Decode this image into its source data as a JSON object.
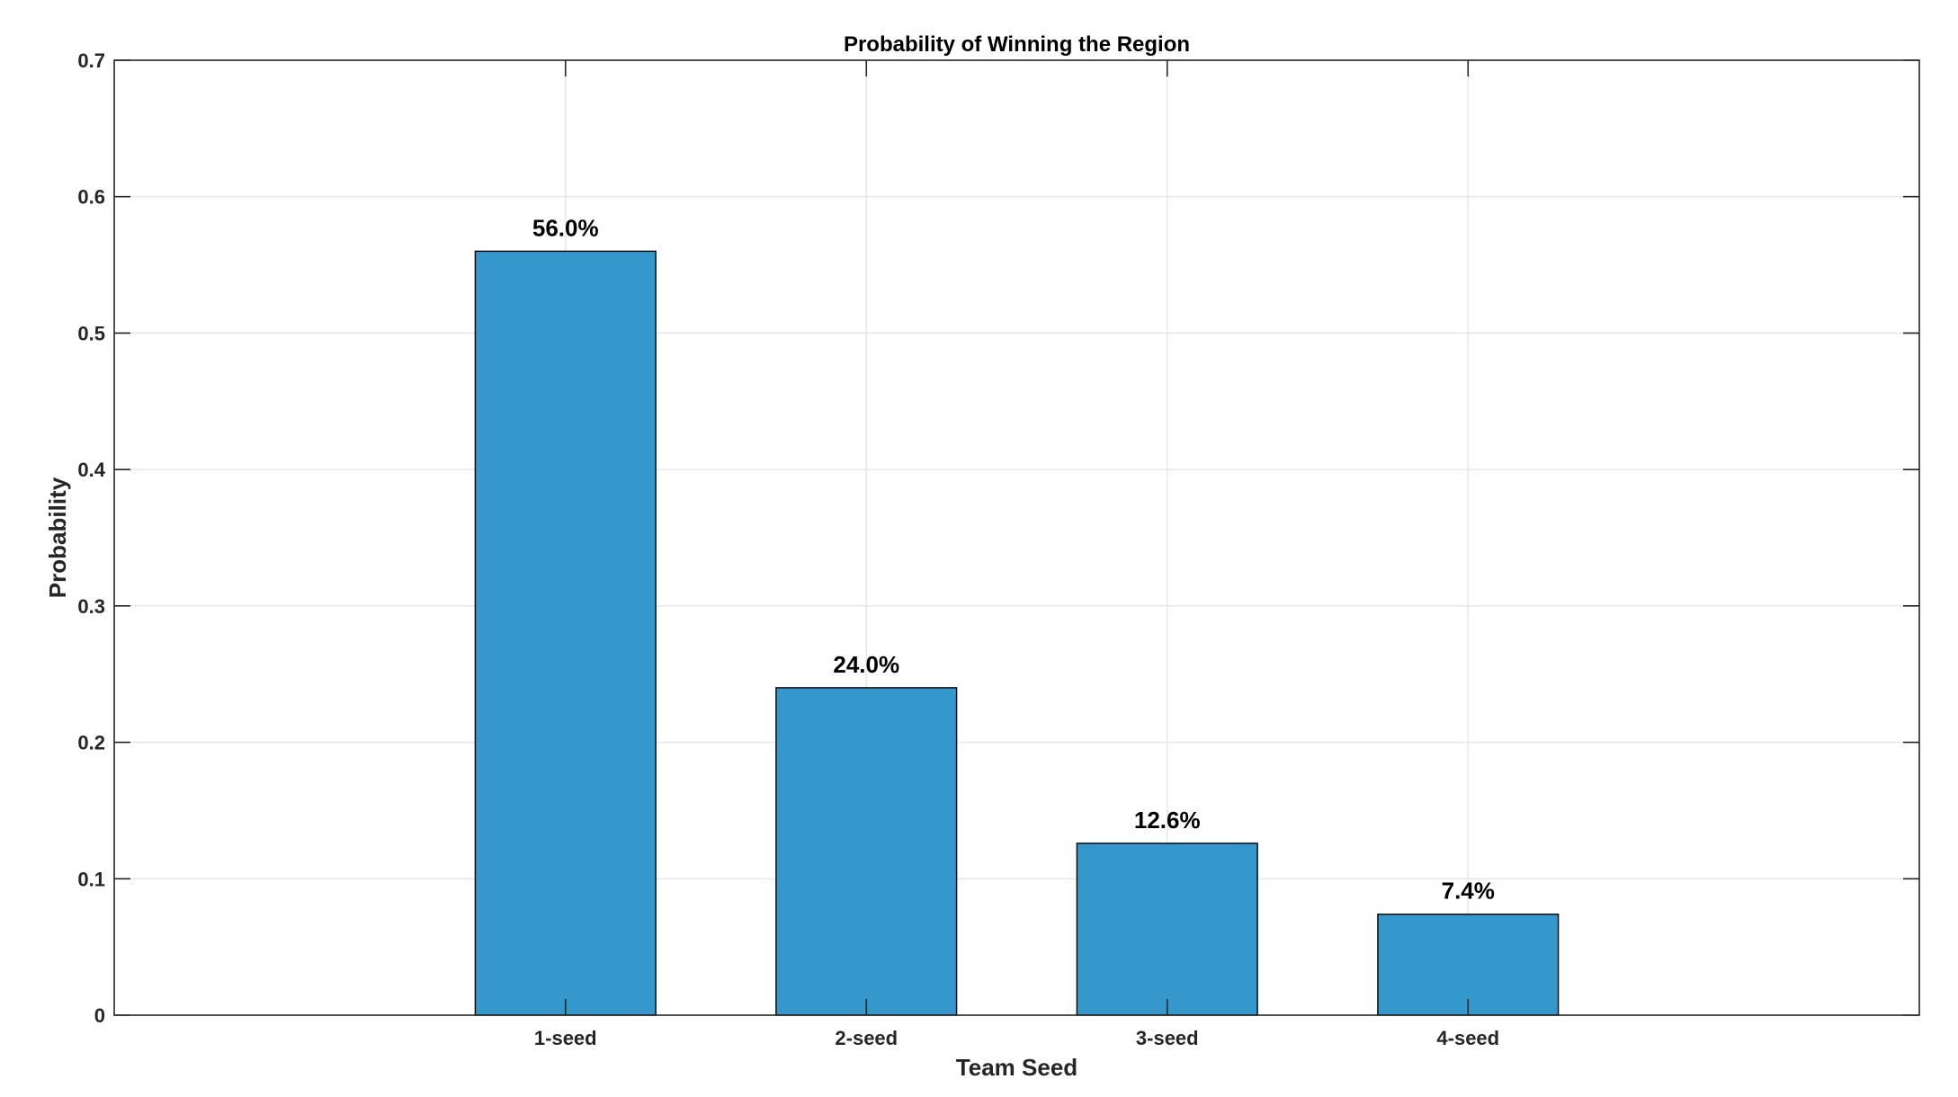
{
  "chart_data": {
    "type": "bar",
    "title": "Probability of Winning the Region",
    "xlabel": "Team Seed",
    "ylabel": "Probability",
    "categories": [
      "1-seed",
      "2-seed",
      "3-seed",
      "4-seed"
    ],
    "values": [
      0.56,
      0.24,
      0.126,
      0.074
    ],
    "data_labels": [
      "56.0%",
      "24.0%",
      "12.6%",
      "7.4%"
    ],
    "ylim": [
      0,
      0.7
    ],
    "yticks": [
      "0",
      "0.1",
      "0.2",
      "0.3",
      "0.4",
      "0.5",
      "0.6",
      "0.7"
    ],
    "xlim": [
      0,
      6
    ],
    "category_positions": [
      1.5,
      2.5,
      3.5,
      4.5
    ],
    "bar_width": 0.6,
    "grid": true,
    "bar_color": "#3498cd",
    "edge_color": "#000000"
  }
}
